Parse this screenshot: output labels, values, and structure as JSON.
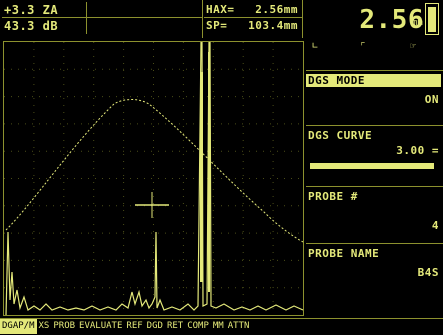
{
  "gain": {
    "line1": "+3.3  ZA",
    "line2": "43.3 dB"
  },
  "measurements": {
    "row1": {
      "label": "HAX=",
      "value": "2.56mm"
    },
    "row2": {
      "label": "SP=",
      "value": "103.4mm"
    }
  },
  "main_reading": {
    "value": "2.56",
    "unit": "mm"
  },
  "battery_level": 0.85,
  "panel": {
    "icons": [
      "signal-icon",
      "probe-icon",
      "hand-icon"
    ],
    "dgs_mode": {
      "label": "DGS MODE",
      "value": "ON"
    },
    "dgs_curve": {
      "label": "DGS CURVE",
      "value": "3.00 ="
    },
    "probe_num": {
      "label": "PROBE #",
      "value": "4"
    },
    "probe_name": {
      "label": "PROBE NAME",
      "value": "B4S"
    }
  },
  "menu": [
    "DGAP/M",
    "XS",
    "PROB",
    "EVALUATE",
    "REF",
    "DGD",
    "RET",
    "COMP",
    "MM",
    "ATTN"
  ],
  "menu_selected": 0,
  "colors": {
    "trace": "#e4e97a",
    "grid": "#4a4d18",
    "border": "#8c912e",
    "background": "#000000"
  }
}
